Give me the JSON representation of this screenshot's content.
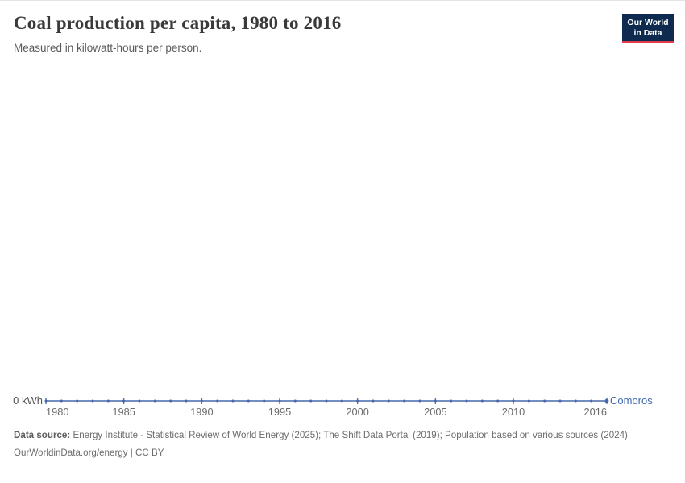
{
  "header": {
    "title": "Coal production per capita, 1980 to 2016",
    "subtitle": "Measured in kilowatt-hours per person.",
    "logo": {
      "line1": "Our World",
      "line2": "in Data"
    }
  },
  "chart_data": {
    "type": "line",
    "title": "Coal production per capita, 1980 to 2016",
    "unit": "kilowatt-hours per person",
    "entity": "Comoros",
    "x": [
      1980,
      1981,
      1982,
      1983,
      1984,
      1985,
      1986,
      1987,
      1988,
      1989,
      1990,
      1991,
      1992,
      1993,
      1994,
      1995,
      1996,
      1997,
      1998,
      1999,
      2000,
      2001,
      2002,
      2003,
      2004,
      2005,
      2006,
      2007,
      2008,
      2009,
      2010,
      2011,
      2012,
      2013,
      2014,
      2015,
      2016
    ],
    "series": [
      {
        "name": "Comoros",
        "values": [
          0,
          0,
          0,
          0,
          0,
          0,
          0,
          0,
          0,
          0,
          0,
          0,
          0,
          0,
          0,
          0,
          0,
          0,
          0,
          0,
          0,
          0,
          0,
          0,
          0,
          0,
          0,
          0,
          0,
          0,
          0,
          0,
          0,
          0,
          0,
          0,
          0
        ]
      }
    ],
    "x_ticks": [
      1980,
      1985,
      1990,
      1995,
      2000,
      2005,
      2010,
      2016
    ],
    "y_tick_label": "0 kWh",
    "ylim": [
      0,
      0
    ],
    "grid": false,
    "legend_position": "right-of-line",
    "colors": {
      "line": "#4668ab",
      "entity_label": "#3f68b1",
      "tick_label": "#6b6b6b",
      "logo_bg": "#0e2a4e",
      "logo_bar": "#dc3c4c"
    }
  },
  "footer": {
    "data_source_label": "Data source:",
    "data_source": " Energy Institute - Statistical Review of World Energy (2025); The Shift Data Portal (2019); Population based on various sources (2024)",
    "link_line": "OurWorldinData.org/energy | CC BY"
  }
}
